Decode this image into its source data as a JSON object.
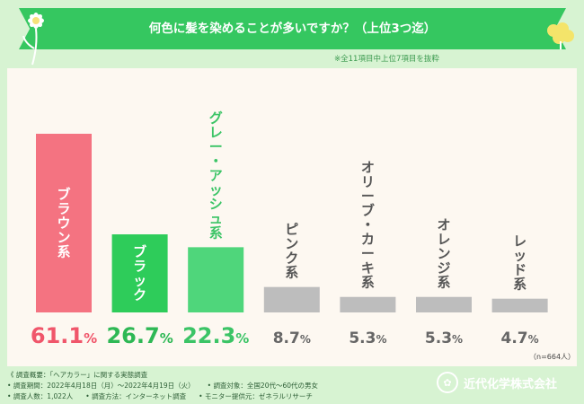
{
  "title": "何色に髪を染めることが多いですか？（上位3つ迄）",
  "note": "※全11項目中上位7項目を抜粋",
  "n_note": "（n=664人）",
  "footer": {
    "overview": "調査概要：「ヘアカラー」に関する実態調査",
    "period": "調査期間：2022年4月18日（月）〜2022年4月19日（火）",
    "target": "調査対象：全国20代〜60代の男女",
    "count": "調査人数：1,022人",
    "method": "調査方法：インターネット調査",
    "provider": "モニター提供元：ゼネラルリサーチ"
  },
  "brand": "近代化学株式会社",
  "colors": {
    "top1": "#f47381",
    "top2": "#2ecc5a",
    "top3": "#4fd67b",
    "other": "#bdbdbd",
    "top1_text": "#f0566b",
    "top2_text": "#2eb855",
    "top3_text": "#3bc466",
    "other_text": "#666666"
  },
  "chart_data": {
    "type": "bar",
    "title": "何色に髪を染めることが多いですか？（上位3つ迄）",
    "categories": [
      "ブラウン系",
      "ブラック",
      "グレー・アッシュ系",
      "ピンク系",
      "オリーブ・カーキ系",
      "オレンジ系",
      "レッド系"
    ],
    "values": [
      61.1,
      26.7,
      22.3,
      8.7,
      5.3,
      5.3,
      4.7
    ],
    "labels": [
      {
        "num": "61.1",
        "unit": "%"
      },
      {
        "num": "26.7",
        "unit": "%"
      },
      {
        "num": "22.3",
        "unit": "%"
      },
      {
        "num": "8.7",
        "unit": "%"
      },
      {
        "num": "5.3",
        "unit": "%"
      },
      {
        "num": "5.3",
        "unit": "%"
      },
      {
        "num": "4.7",
        "unit": "%"
      }
    ],
    "ylim": [
      0,
      70
    ],
    "xlabel": "",
    "ylabel": "",
    "unit": "%"
  }
}
